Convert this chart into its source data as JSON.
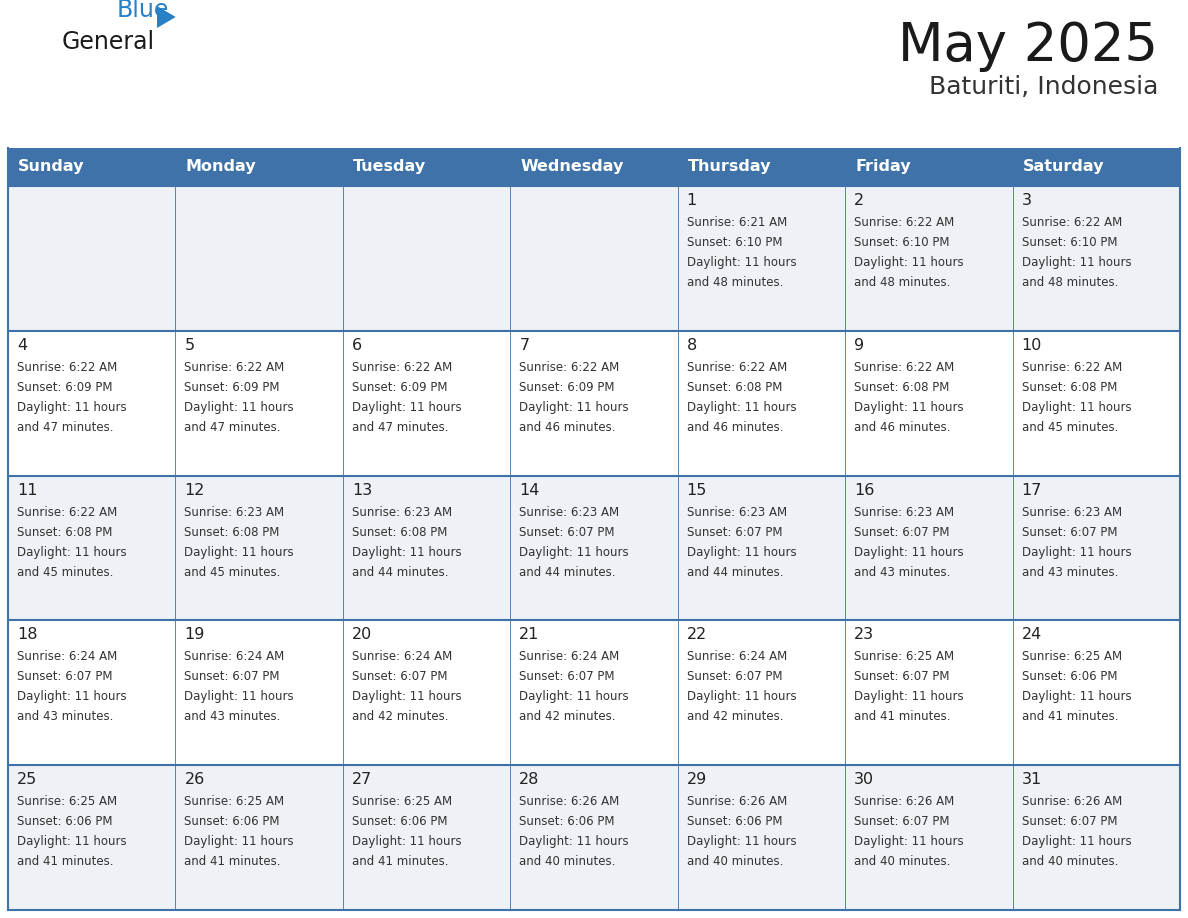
{
  "title": "May 2025",
  "subtitle": "Baturiti, Indonesia",
  "days_of_week": [
    "Sunday",
    "Monday",
    "Tuesday",
    "Wednesday",
    "Thursday",
    "Friday",
    "Saturday"
  ],
  "header_bg_color": "#3f72a8",
  "header_text_color": "#ffffff",
  "cell_bg_even": "#eef1f5",
  "cell_bg_odd": "#ffffff",
  "cell_text_color": "#333333",
  "day_number_color": "#222222",
  "grid_color": "#3f72a8",
  "title_color": "#1a1a1a",
  "subtitle_color": "#333333",
  "logo_general_color": "#1a1a1a",
  "logo_blue_color": "#2980c4",
  "logo_triangle_color": "#2980c4",
  "calendar_data": [
    [
      null,
      null,
      null,
      null,
      {
        "day": 1,
        "sunrise": "6:21 AM",
        "sunset": "6:10 PM",
        "daylight_line1": "Daylight: 11 hours",
        "daylight_line2": "and 48 minutes."
      },
      {
        "day": 2,
        "sunrise": "6:22 AM",
        "sunset": "6:10 PM",
        "daylight_line1": "Daylight: 11 hours",
        "daylight_line2": "and 48 minutes."
      },
      {
        "day": 3,
        "sunrise": "6:22 AM",
        "sunset": "6:10 PM",
        "daylight_line1": "Daylight: 11 hours",
        "daylight_line2": "and 48 minutes."
      }
    ],
    [
      {
        "day": 4,
        "sunrise": "6:22 AM",
        "sunset": "6:09 PM",
        "daylight_line1": "Daylight: 11 hours",
        "daylight_line2": "and 47 minutes."
      },
      {
        "day": 5,
        "sunrise": "6:22 AM",
        "sunset": "6:09 PM",
        "daylight_line1": "Daylight: 11 hours",
        "daylight_line2": "and 47 minutes."
      },
      {
        "day": 6,
        "sunrise": "6:22 AM",
        "sunset": "6:09 PM",
        "daylight_line1": "Daylight: 11 hours",
        "daylight_line2": "and 47 minutes."
      },
      {
        "day": 7,
        "sunrise": "6:22 AM",
        "sunset": "6:09 PM",
        "daylight_line1": "Daylight: 11 hours",
        "daylight_line2": "and 46 minutes."
      },
      {
        "day": 8,
        "sunrise": "6:22 AM",
        "sunset": "6:08 PM",
        "daylight_line1": "Daylight: 11 hours",
        "daylight_line2": "and 46 minutes."
      },
      {
        "day": 9,
        "sunrise": "6:22 AM",
        "sunset": "6:08 PM",
        "daylight_line1": "Daylight: 11 hours",
        "daylight_line2": "and 46 minutes."
      },
      {
        "day": 10,
        "sunrise": "6:22 AM",
        "sunset": "6:08 PM",
        "daylight_line1": "Daylight: 11 hours",
        "daylight_line2": "and 45 minutes."
      }
    ],
    [
      {
        "day": 11,
        "sunrise": "6:22 AM",
        "sunset": "6:08 PM",
        "daylight_line1": "Daylight: 11 hours",
        "daylight_line2": "and 45 minutes."
      },
      {
        "day": 12,
        "sunrise": "6:23 AM",
        "sunset": "6:08 PM",
        "daylight_line1": "Daylight: 11 hours",
        "daylight_line2": "and 45 minutes."
      },
      {
        "day": 13,
        "sunrise": "6:23 AM",
        "sunset": "6:08 PM",
        "daylight_line1": "Daylight: 11 hours",
        "daylight_line2": "and 44 minutes."
      },
      {
        "day": 14,
        "sunrise": "6:23 AM",
        "sunset": "6:07 PM",
        "daylight_line1": "Daylight: 11 hours",
        "daylight_line2": "and 44 minutes."
      },
      {
        "day": 15,
        "sunrise": "6:23 AM",
        "sunset": "6:07 PM",
        "daylight_line1": "Daylight: 11 hours",
        "daylight_line2": "and 44 minutes."
      },
      {
        "day": 16,
        "sunrise": "6:23 AM",
        "sunset": "6:07 PM",
        "daylight_line1": "Daylight: 11 hours",
        "daylight_line2": "and 43 minutes."
      },
      {
        "day": 17,
        "sunrise": "6:23 AM",
        "sunset": "6:07 PM",
        "daylight_line1": "Daylight: 11 hours",
        "daylight_line2": "and 43 minutes."
      }
    ],
    [
      {
        "day": 18,
        "sunrise": "6:24 AM",
        "sunset": "6:07 PM",
        "daylight_line1": "Daylight: 11 hours",
        "daylight_line2": "and 43 minutes."
      },
      {
        "day": 19,
        "sunrise": "6:24 AM",
        "sunset": "6:07 PM",
        "daylight_line1": "Daylight: 11 hours",
        "daylight_line2": "and 43 minutes."
      },
      {
        "day": 20,
        "sunrise": "6:24 AM",
        "sunset": "6:07 PM",
        "daylight_line1": "Daylight: 11 hours",
        "daylight_line2": "and 42 minutes."
      },
      {
        "day": 21,
        "sunrise": "6:24 AM",
        "sunset": "6:07 PM",
        "daylight_line1": "Daylight: 11 hours",
        "daylight_line2": "and 42 minutes."
      },
      {
        "day": 22,
        "sunrise": "6:24 AM",
        "sunset": "6:07 PM",
        "daylight_line1": "Daylight: 11 hours",
        "daylight_line2": "and 42 minutes."
      },
      {
        "day": 23,
        "sunrise": "6:25 AM",
        "sunset": "6:07 PM",
        "daylight_line1": "Daylight: 11 hours",
        "daylight_line2": "and 41 minutes."
      },
      {
        "day": 24,
        "sunrise": "6:25 AM",
        "sunset": "6:06 PM",
        "daylight_line1": "Daylight: 11 hours",
        "daylight_line2": "and 41 minutes."
      }
    ],
    [
      {
        "day": 25,
        "sunrise": "6:25 AM",
        "sunset": "6:06 PM",
        "daylight_line1": "Daylight: 11 hours",
        "daylight_line2": "and 41 minutes."
      },
      {
        "day": 26,
        "sunrise": "6:25 AM",
        "sunset": "6:06 PM",
        "daylight_line1": "Daylight: 11 hours",
        "daylight_line2": "and 41 minutes."
      },
      {
        "day": 27,
        "sunrise": "6:25 AM",
        "sunset": "6:06 PM",
        "daylight_line1": "Daylight: 11 hours",
        "daylight_line2": "and 41 minutes."
      },
      {
        "day": 28,
        "sunrise": "6:26 AM",
        "sunset": "6:06 PM",
        "daylight_line1": "Daylight: 11 hours",
        "daylight_line2": "and 40 minutes."
      },
      {
        "day": 29,
        "sunrise": "6:26 AM",
        "sunset": "6:06 PM",
        "daylight_line1": "Daylight: 11 hours",
        "daylight_line2": "and 40 minutes."
      },
      {
        "day": 30,
        "sunrise": "6:26 AM",
        "sunset": "6:07 PM",
        "daylight_line1": "Daylight: 11 hours",
        "daylight_line2": "and 40 minutes."
      },
      {
        "day": 31,
        "sunrise": "6:26 AM",
        "sunset": "6:07 PM",
        "daylight_line1": "Daylight: 11 hours",
        "daylight_line2": "and 40 minutes."
      }
    ]
  ]
}
